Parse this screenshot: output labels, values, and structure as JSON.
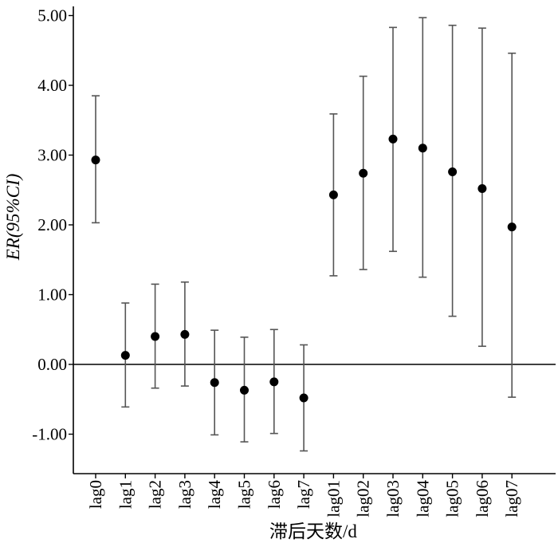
{
  "chart_data": {
    "type": "scatter",
    "subtype": "point-with-error-bars",
    "xlabel": "滞后天数/d",
    "ylabel": "ER(95%CI)",
    "ylim": [
      -1.6,
      5.1
    ],
    "yticks": [
      "5.00",
      "4.00",
      "3.00",
      "2.00",
      "1.00",
      "0.00",
      "-1.00"
    ],
    "yticks_values": [
      5,
      4,
      3,
      2,
      1,
      0,
      -1
    ],
    "reference_line": 0,
    "categories": [
      "lag0",
      "lag1",
      "lag2",
      "lag3",
      "lag4",
      "lag5",
      "lag6",
      "lag7",
      "lag01",
      "lag02",
      "lag03",
      "lag04",
      "lag05",
      "lag06",
      "lag07"
    ],
    "values": [
      2.93,
      0.13,
      0.4,
      0.43,
      -0.26,
      -0.37,
      -0.25,
      -0.48,
      2.43,
      2.74,
      3.23,
      3.1,
      2.76,
      2.52,
      1.97
    ],
    "lower": [
      2.03,
      -0.61,
      -0.34,
      -0.31,
      -1.01,
      -1.11,
      -0.99,
      -1.24,
      1.27,
      1.36,
      1.62,
      1.25,
      0.69,
      0.26,
      -0.47
    ],
    "upper": [
      3.85,
      0.88,
      1.15,
      1.18,
      0.49,
      0.39,
      0.5,
      0.28,
      3.59,
      4.13,
      4.83,
      4.97,
      4.86,
      4.82,
      4.46
    ],
    "colors": {
      "marker": "#000000",
      "whisker": "#555555",
      "axis": "#000000"
    },
    "grid": false,
    "legend": "none"
  }
}
